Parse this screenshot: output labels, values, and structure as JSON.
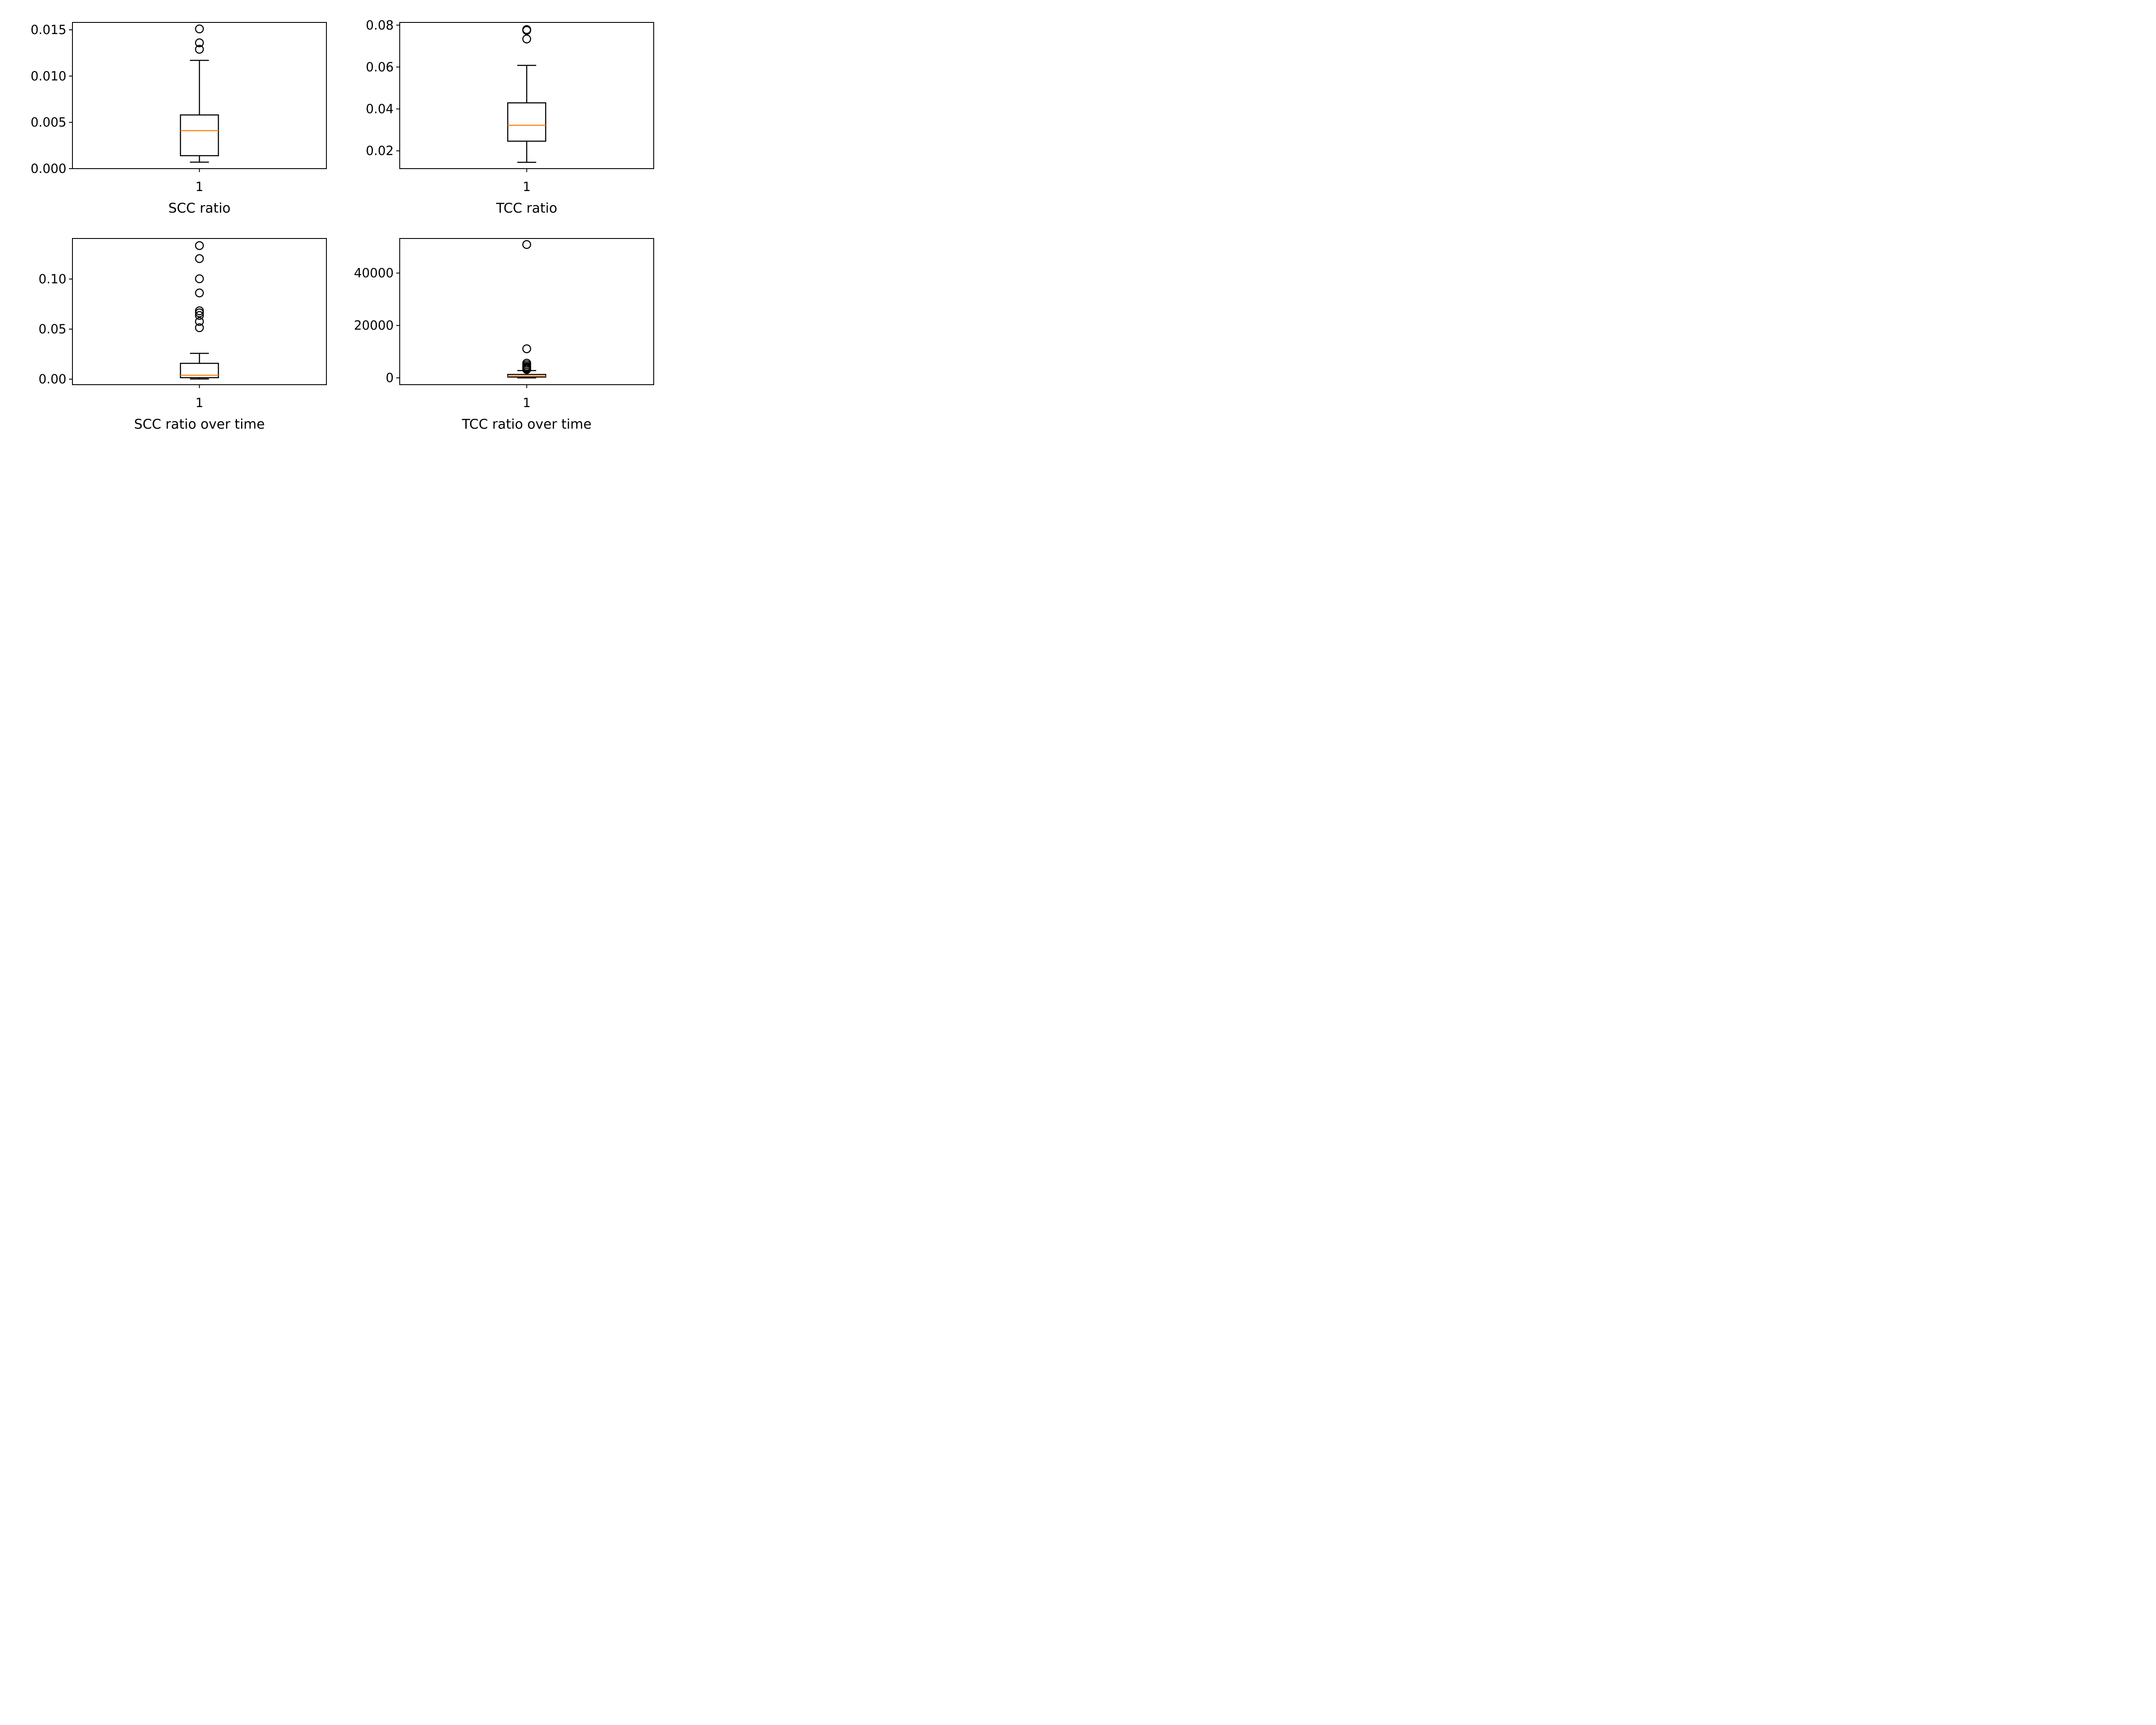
{
  "colors": {
    "box": "#000000",
    "median": "#ff7f0e",
    "flier": "#000000"
  },
  "chart_data": [
    {
      "type": "box",
      "xlabel": "SCC ratio",
      "xticks": [
        "1"
      ],
      "ylim": [
        0,
        0.0158
      ],
      "yticks": [
        0,
        0.005,
        0.01,
        0.015
      ],
      "ytick_labels": [
        "0.000",
        "0.005",
        "0.010",
        "0.015"
      ],
      "stats": {
        "whislo": 0.0007,
        "q1": 0.0014,
        "med": 0.0041,
        "q3": 0.0058,
        "whishi": 0.0117
      },
      "fliers": [
        0.0129,
        0.0136,
        0.0151
      ]
    },
    {
      "type": "box",
      "xlabel": "TCC ratio",
      "xticks": [
        "1"
      ],
      "ylim": [
        0.0115,
        0.0813
      ],
      "yticks": [
        0.02,
        0.04,
        0.06,
        0.08
      ],
      "ytick_labels": [
        "0.02",
        "0.04",
        "0.06",
        "0.08"
      ],
      "stats": {
        "whislo": 0.0145,
        "q1": 0.0246,
        "med": 0.0322,
        "q3": 0.0429,
        "whishi": 0.0608
      },
      "fliers": [
        0.0734,
        0.0775,
        0.0779
      ]
    },
    {
      "type": "box",
      "xlabel": "SCC ratio over time",
      "xticks": [
        "1"
      ],
      "ylim": [
        -0.0055,
        0.1405
      ],
      "yticks": [
        0,
        0.05,
        0.1
      ],
      "ytick_labels": [
        "0.00",
        "0.05",
        "0.10"
      ],
      "stats": {
        "whislo": 0.0002,
        "q1": 0.0015,
        "med": 0.0039,
        "q3": 0.0158,
        "whishi": 0.0258
      },
      "fliers": [
        0.0514,
        0.0576,
        0.0636,
        0.0662,
        0.0683,
        0.0861,
        0.1003,
        0.1204,
        0.1334
      ]
    },
    {
      "type": "box",
      "xlabel": "TCC ratio over time",
      "xticks": [
        "1"
      ],
      "ylim": [
        -2600,
        53200
      ],
      "yticks": [
        0,
        20000,
        40000
      ],
      "ytick_labels": [
        "0",
        "20000",
        "40000"
      ],
      "stats": {
        "whislo": 0,
        "q1": 300,
        "med": 650,
        "q3": 1300,
        "whishi": 2800
      },
      "fliers": [
        3200,
        3600,
        4000,
        4400,
        5000,
        5600,
        11100,
        50900
      ]
    }
  ]
}
